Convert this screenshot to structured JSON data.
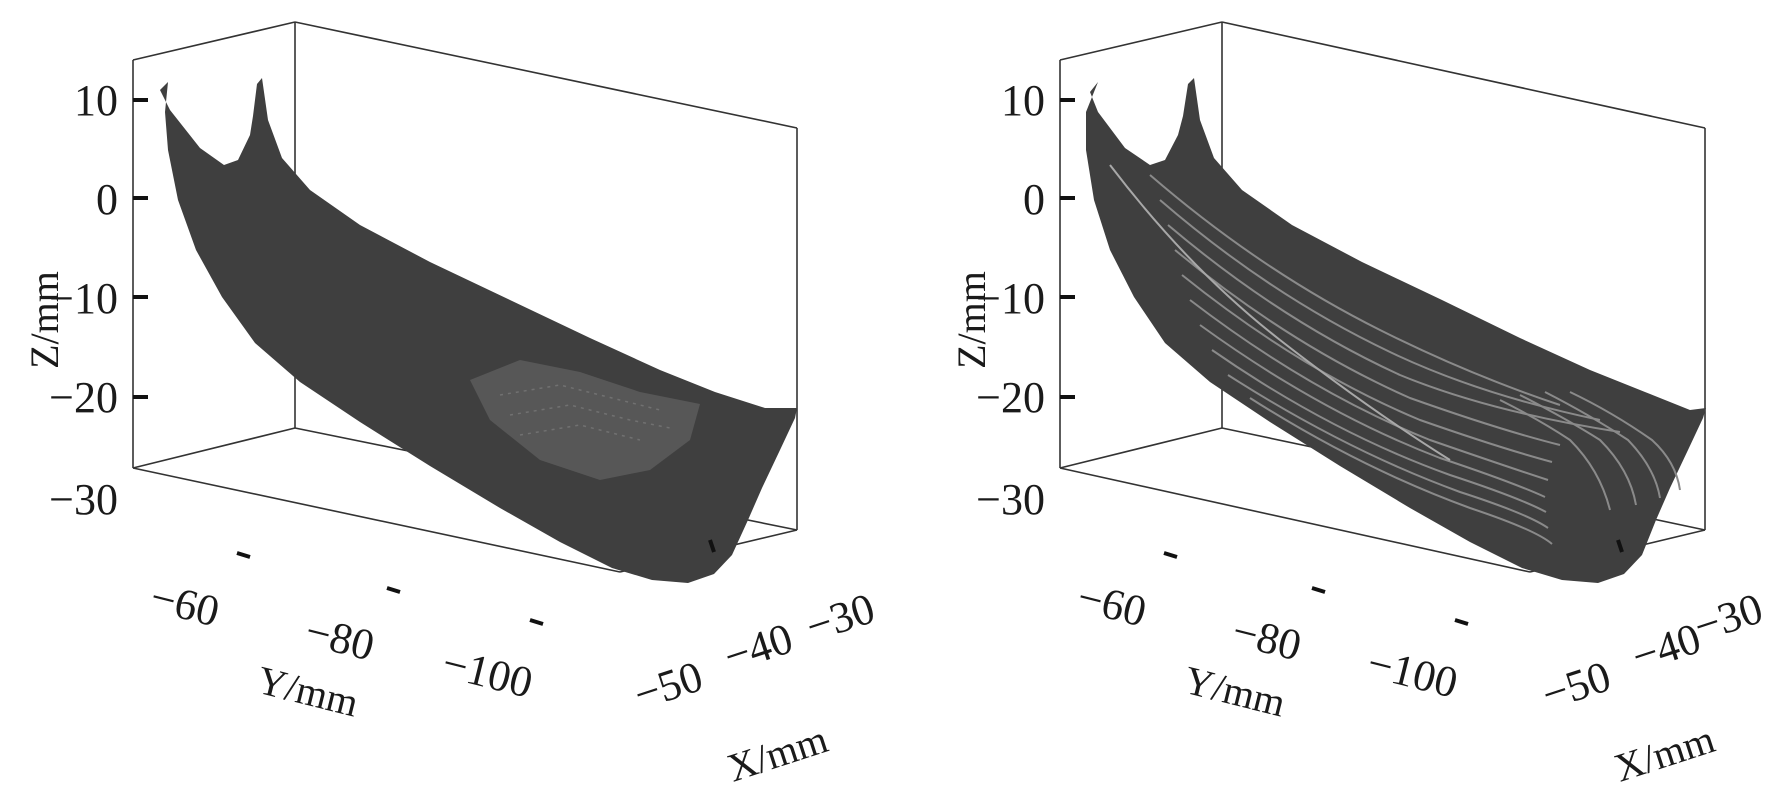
{
  "colors": {
    "surface": "#3f3f3f",
    "frame": "#333333",
    "contour": "#8a8a8a",
    "background": "#ffffff"
  },
  "chart_data": [
    {
      "type": "surface3d",
      "panel": "left",
      "surface_style": "solid",
      "xlabel": "X/mm",
      "ylabel": "Y/mm",
      "zlabel": "Z/mm",
      "x_ticks": [
        "−50",
        "−40",
        "−30"
      ],
      "y_ticks": [
        "−60",
        "−80",
        "−100"
      ],
      "z_ticks": [
        "10",
        "0",
        "−10",
        "−20",
        "−30"
      ],
      "xlim": [
        -55,
        -28
      ],
      "ylim": [
        -52,
        -118
      ],
      "zlim": [
        -33,
        12
      ],
      "grid": false
    },
    {
      "type": "surface3d",
      "panel": "right",
      "surface_style": "contour-paths",
      "xlabel": "X/mm",
      "ylabel": "Y/mm",
      "zlabel": "Z/mm",
      "x_ticks": [
        "−50",
        "−40",
        "−30"
      ],
      "y_ticks": [
        "−60",
        "−80",
        "−100"
      ],
      "z_ticks": [
        "10",
        "0",
        "−10",
        "−20",
        "−30"
      ],
      "xlim": [
        -55,
        -28
      ],
      "ylim": [
        -52,
        -118
      ],
      "zlim": [
        -33,
        12
      ],
      "grid": false
    }
  ]
}
